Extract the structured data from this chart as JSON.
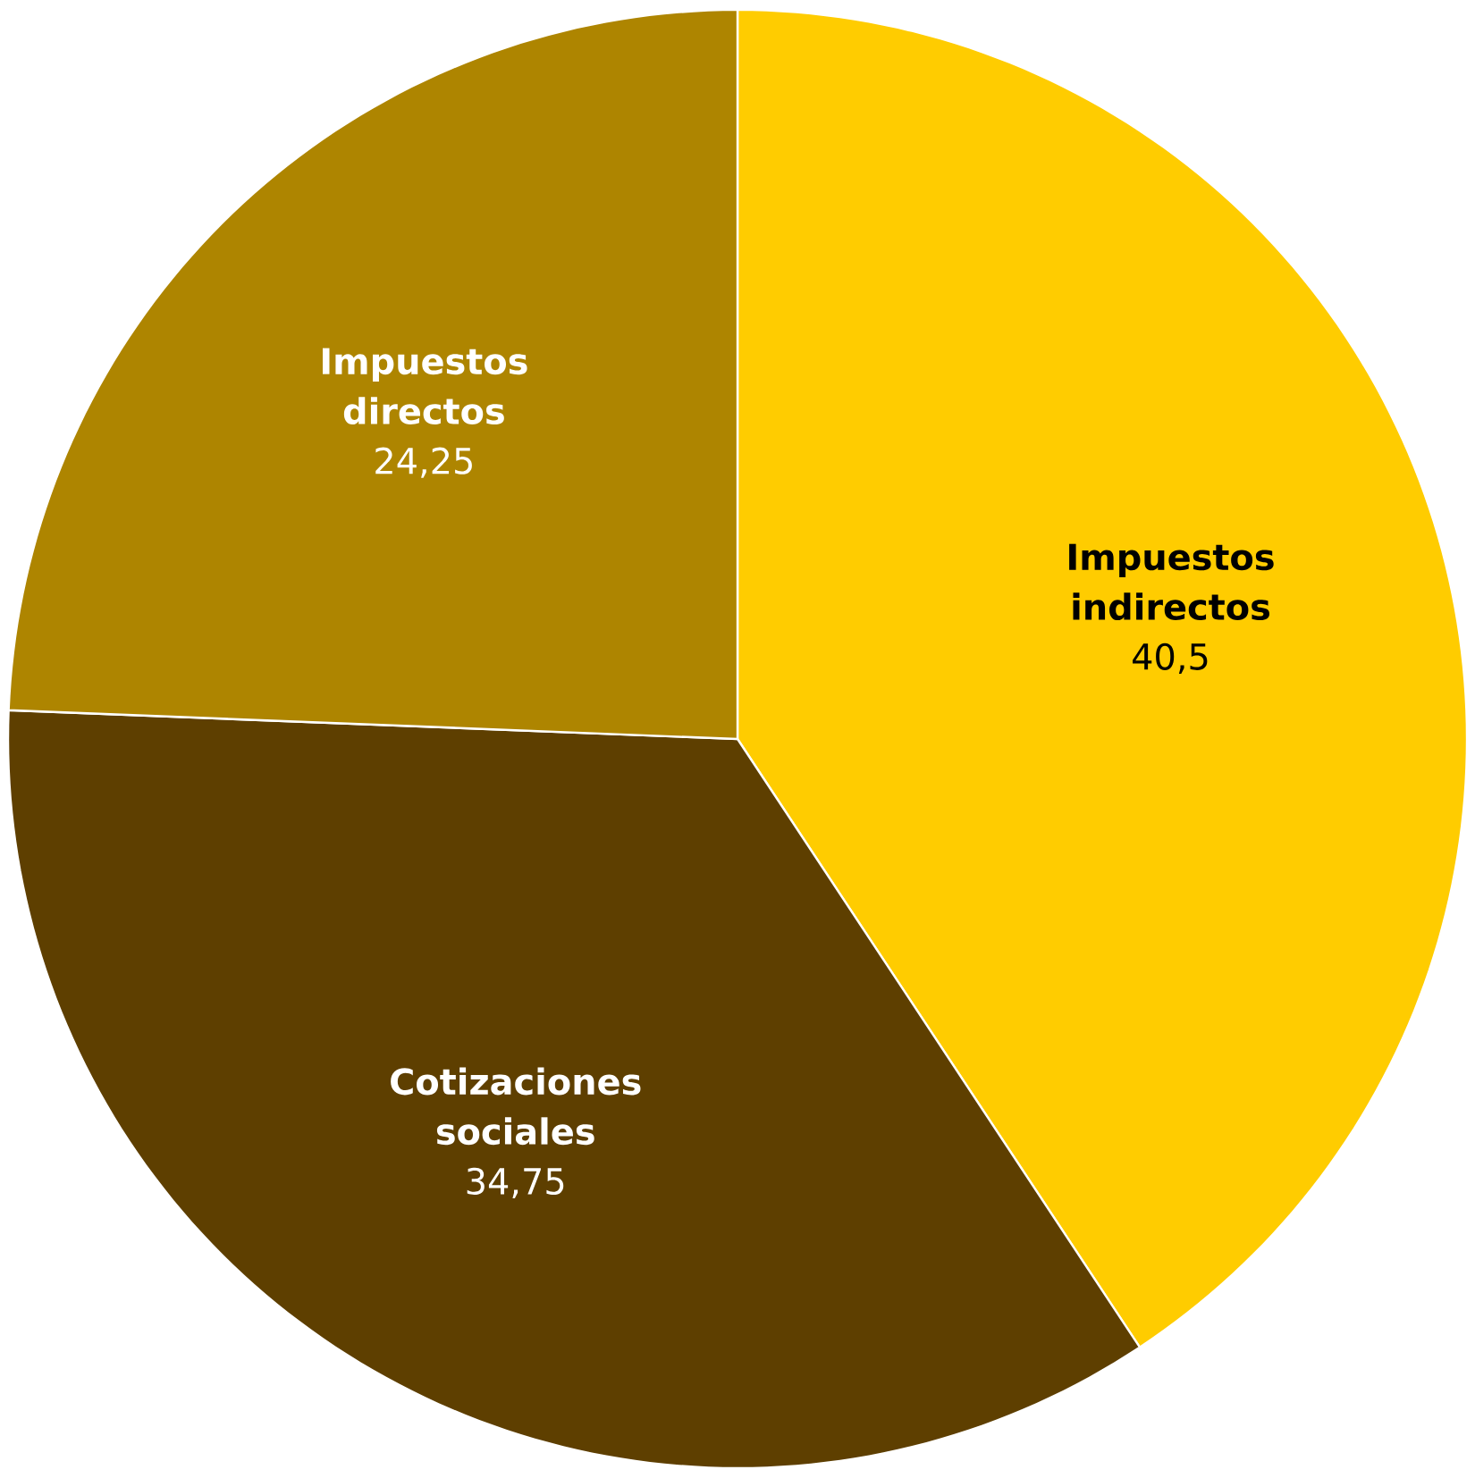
{
  "chart_data": {
    "type": "pie",
    "categories": [
      "Impuestos indirectos",
      "Cotizaciones sociales",
      "Impuestos directos"
    ],
    "values": [
      40.5,
      34.75,
      24.25
    ],
    "value_labels": [
      "40,5",
      "34,75",
      "24,25"
    ],
    "colors": [
      "#ffcc00",
      "#5e3f00",
      "#ae8500"
    ]
  }
}
